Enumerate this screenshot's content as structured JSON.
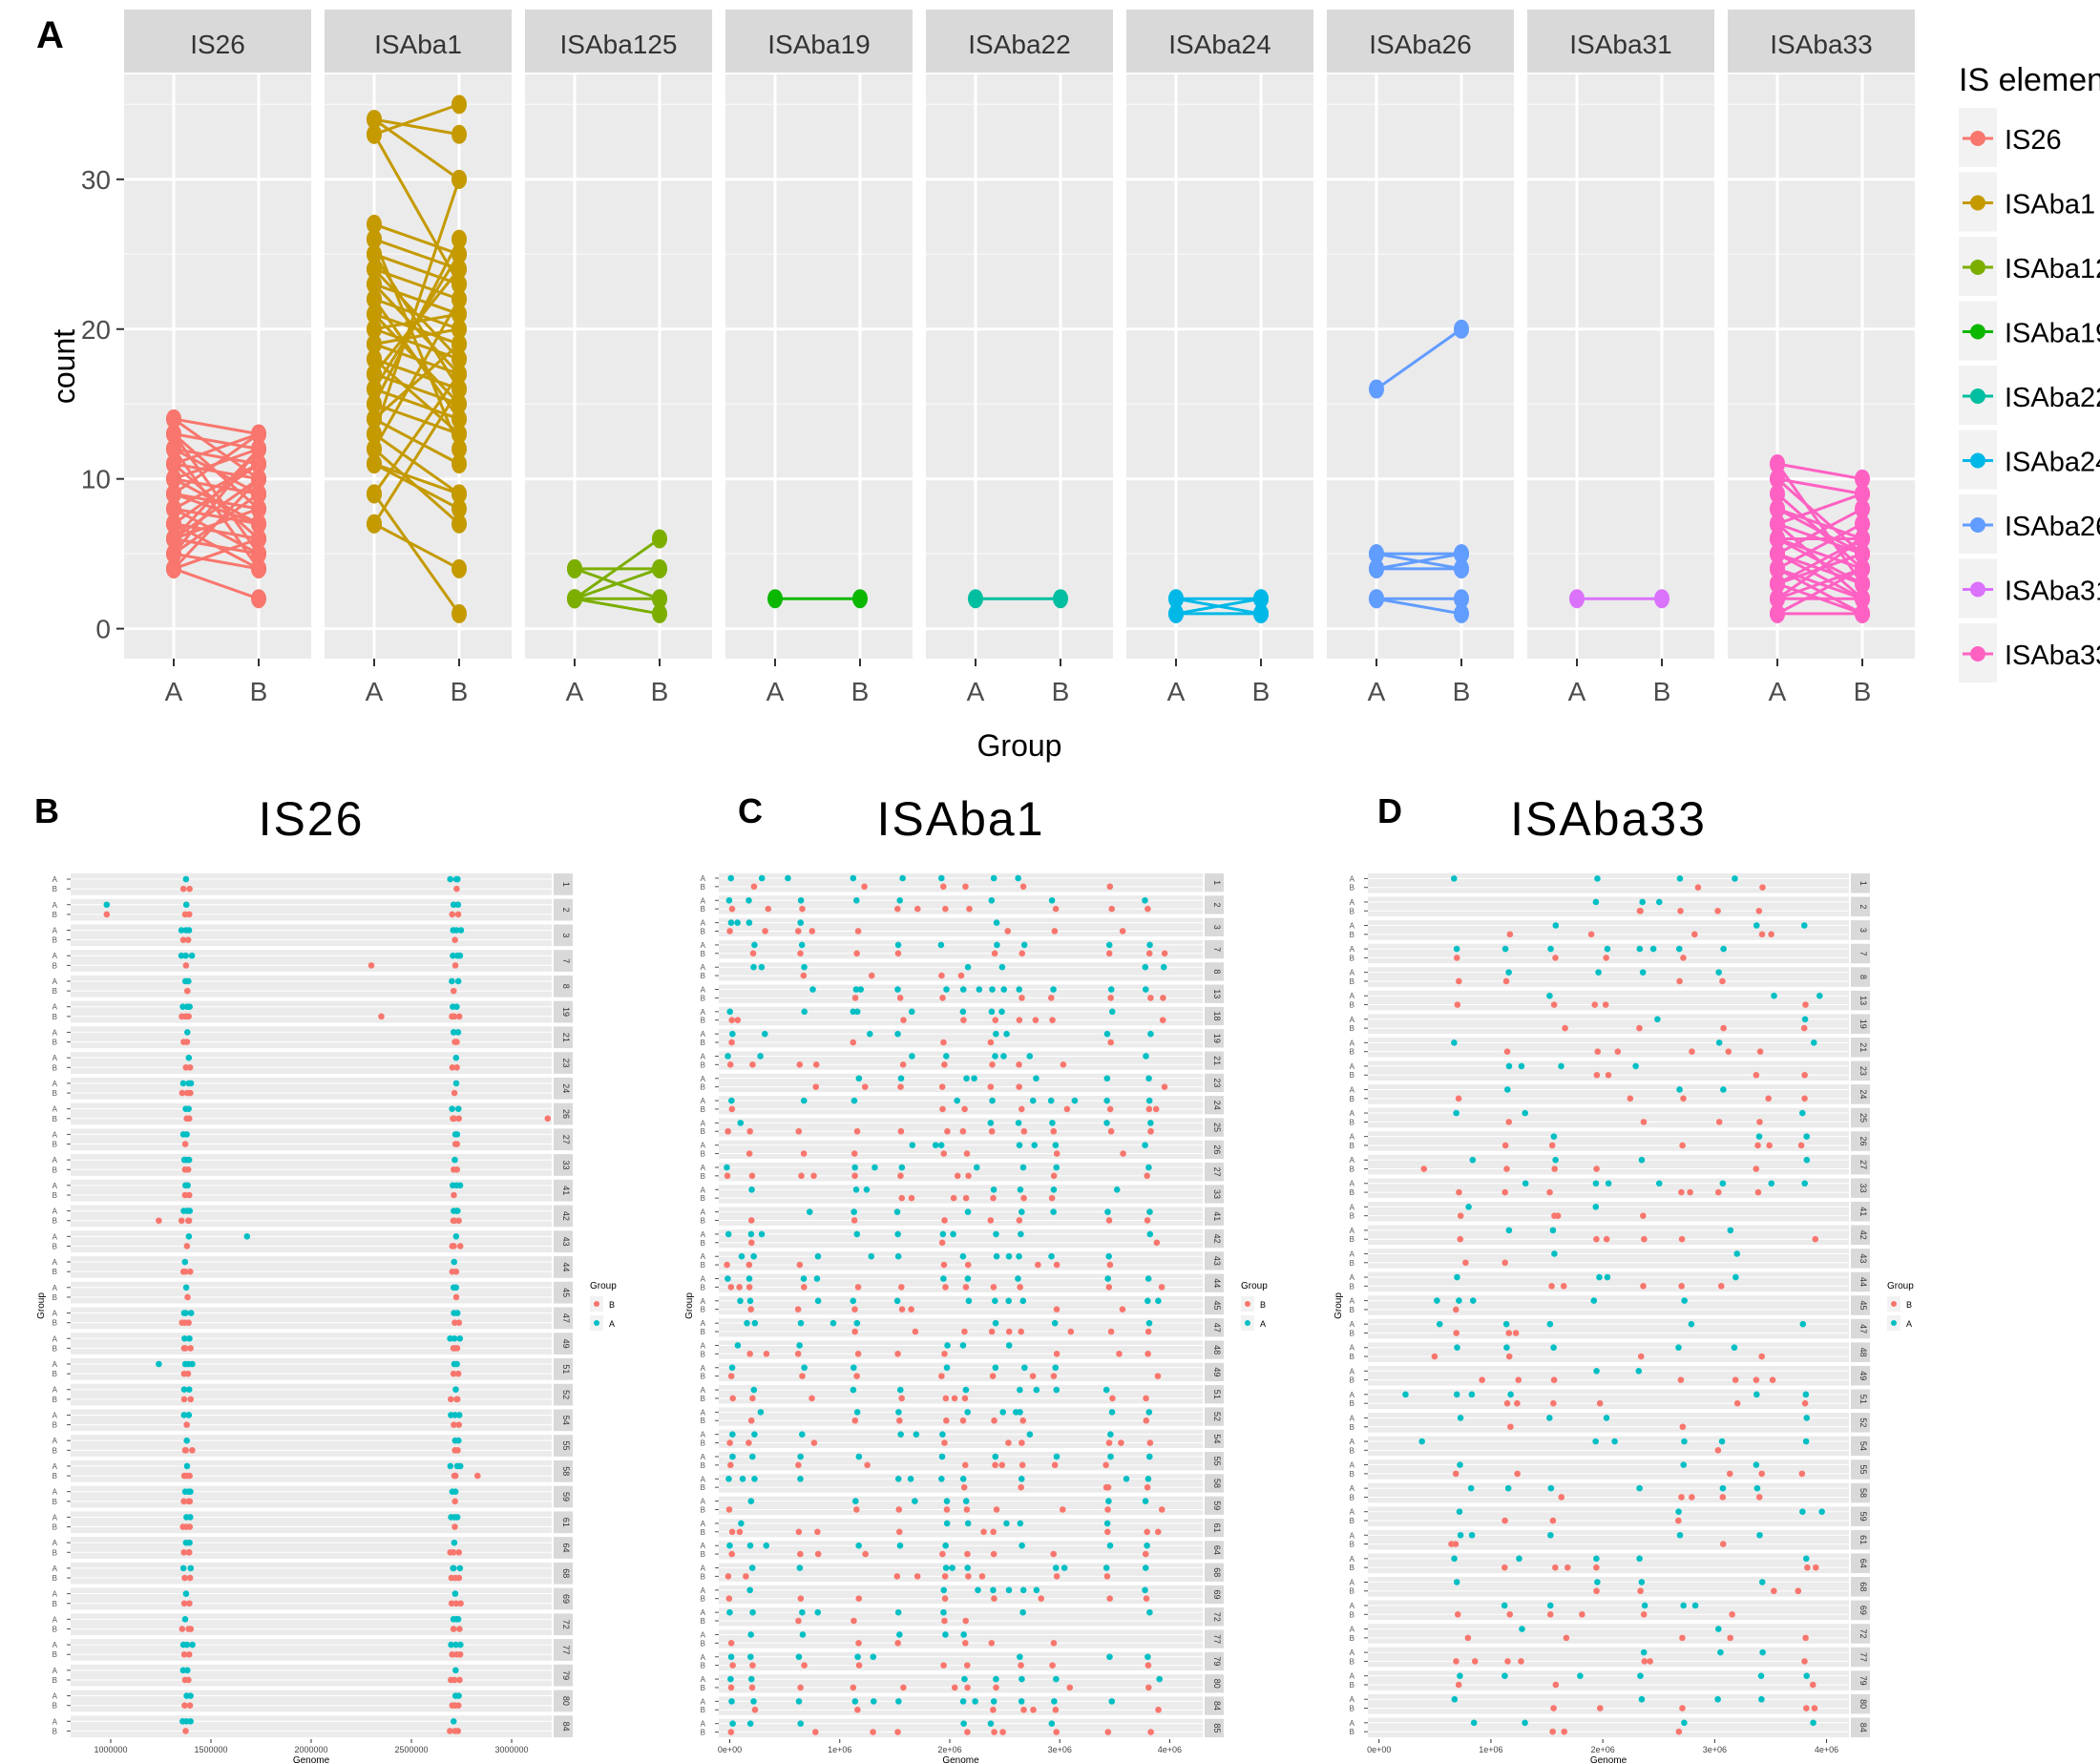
{
  "chart_data": [
    {
      "panel": "A",
      "type": "line",
      "subtype": "paired slope chart faceted by IS element",
      "xlabel": "Group",
      "ylabel": "count",
      "x_categories": [
        "A",
        "B"
      ],
      "y_ticks": [
        0,
        10,
        20,
        30
      ],
      "ylim": [
        0,
        35
      ],
      "legend_title": "IS element",
      "legend_position": "right",
      "facets": [
        {
          "name": "IS26",
          "color": "#F8766D",
          "pairs": [
            [
              4,
              2
            ],
            [
              5,
              4
            ],
            [
              6,
              5
            ],
            [
              7,
              6
            ],
            [
              8,
              7
            ],
            [
              9,
              8
            ],
            [
              10,
              9
            ],
            [
              11,
              10
            ],
            [
              12,
              11
            ],
            [
              13,
              12
            ],
            [
              14,
              13
            ],
            [
              4,
              6
            ],
            [
              6,
              8
            ],
            [
              8,
              11
            ],
            [
              10,
              7
            ],
            [
              12,
              9
            ],
            [
              14,
              10
            ],
            [
              5,
              12
            ],
            [
              7,
              4
            ],
            [
              9,
              13
            ],
            [
              11,
              6
            ],
            [
              13,
              8
            ],
            [
              6,
              10
            ],
            [
              8,
              5
            ],
            [
              10,
              12
            ],
            [
              12,
              4
            ],
            [
              5,
              9
            ],
            [
              7,
              11
            ],
            [
              9,
              7
            ],
            [
              11,
              13
            ],
            [
              4,
              10
            ],
            [
              6,
              12
            ],
            [
              13,
              5
            ]
          ]
        },
        {
          "name": "ISAba1",
          "color": "#C49A00",
          "pairs": [
            [
              7,
              4
            ],
            [
              9,
              1
            ],
            [
              11,
              8
            ],
            [
              12,
              7
            ],
            [
              13,
              9
            ],
            [
              14,
              11
            ],
            [
              15,
              13
            ],
            [
              16,
              14
            ],
            [
              17,
              15
            ],
            [
              18,
              16
            ],
            [
              19,
              17
            ],
            [
              20,
              18
            ],
            [
              21,
              19
            ],
            [
              22,
              20
            ],
            [
              23,
              21
            ],
            [
              24,
              22
            ],
            [
              25,
              23
            ],
            [
              26,
              24
            ],
            [
              27,
              25
            ],
            [
              33,
              35
            ],
            [
              34,
              33
            ],
            [
              13,
              30
            ],
            [
              15,
              26
            ],
            [
              17,
              24
            ],
            [
              19,
              20
            ],
            [
              21,
              15
            ],
            [
              23,
              17
            ],
            [
              25,
              16
            ],
            [
              12,
              22
            ],
            [
              14,
              19
            ],
            [
              16,
              25
            ],
            [
              18,
              13
            ],
            [
              20,
              21
            ],
            [
              22,
              14
            ],
            [
              24,
              18
            ],
            [
              26,
              12
            ],
            [
              33,
              23
            ],
            [
              34,
              30
            ],
            [
              9,
              17
            ],
            [
              11,
              9
            ],
            [
              7,
              16
            ]
          ]
        },
        {
          "name": "ISAba125",
          "color": "#7CAE00",
          "pairs": [
            [
              2,
              2
            ],
            [
              2,
              4
            ],
            [
              2,
              6
            ],
            [
              4,
              4
            ],
            [
              4,
              2
            ],
            [
              2,
              1
            ]
          ]
        },
        {
          "name": "ISAba19",
          "color": "#0CB702",
          "pairs": [
            [
              2,
              2
            ]
          ]
        },
        {
          "name": "ISAba22",
          "color": "#00BE9F",
          "pairs": [
            [
              2,
              2
            ]
          ]
        },
        {
          "name": "ISAba24",
          "color": "#00B8E7",
          "pairs": [
            [
              1,
              1
            ],
            [
              2,
              2
            ],
            [
              1,
              2
            ],
            [
              2,
              1
            ]
          ]
        },
        {
          "name": "ISAba26",
          "color": "#619CFF",
          "pairs": [
            [
              16,
              20
            ],
            [
              5,
              5
            ],
            [
              4,
              4
            ],
            [
              5,
              4
            ],
            [
              4,
              5
            ],
            [
              2,
              2
            ],
            [
              2,
              1
            ]
          ]
        },
        {
          "name": "ISAba31",
          "color": "#DB72FB",
          "pairs": [
            [
              2,
              2
            ]
          ]
        },
        {
          "name": "ISAba33",
          "color": "#FF61C3",
          "pairs": [
            [
              11,
              10
            ],
            [
              10,
              9
            ],
            [
              8,
              6
            ],
            [
              7,
              5
            ],
            [
              6,
              4
            ],
            [
              5,
              3
            ],
            [
              4,
              2
            ],
            [
              3,
              1
            ],
            [
              2,
              2
            ],
            [
              1,
              1
            ],
            [
              3,
              5
            ],
            [
              5,
              8
            ],
            [
              7,
              2
            ],
            [
              9,
              4
            ],
            [
              2,
              6
            ],
            [
              4,
              7
            ],
            [
              6,
              3
            ],
            [
              8,
              5
            ],
            [
              1,
              4
            ],
            [
              3,
              6
            ],
            [
              5,
              2
            ],
            [
              7,
              9
            ],
            [
              2,
              4
            ],
            [
              4,
              1
            ],
            [
              6,
              6
            ],
            [
              10,
              5
            ],
            [
              11,
              3
            ]
          ]
        }
      ]
    },
    {
      "panel": "B",
      "title": "IS26",
      "type": "scatter",
      "xlabel": "Genome",
      "ylabel": "Group",
      "xlim": [
        800000,
        3200000
      ],
      "x_ticks": [
        1000000,
        1500000,
        2000000,
        2500000,
        3000000
      ],
      "x_tick_labels": [
        "1000000",
        "1500000",
        "2000000",
        "2500000",
        "3000000"
      ],
      "strain_ids": [
        "1",
        "2",
        "3",
        "7",
        "8",
        "19",
        "21",
        "23",
        "24",
        "26",
        "27",
        "33",
        "41",
        "42",
        "43",
        "44",
        "45",
        "47",
        "49",
        "51",
        "52",
        "54",
        "55",
        "58",
        "59",
        "61",
        "64",
        "68",
        "69",
        "72",
        "77",
        "79",
        "80",
        "84"
      ],
      "legend_title": "Group",
      "legend": [
        {
          "label": "B",
          "color": "#F8766D"
        },
        {
          "label": "A",
          "color": "#00BFC4"
        }
      ],
      "cluster_positions": [
        1380000,
        2720000
      ],
      "outliers": [
        [
          1,
          "A",
          980000
        ],
        [
          1,
          "B",
          980000
        ],
        [
          3,
          "B",
          2300000
        ],
        [
          5,
          "B",
          2350000
        ],
        [
          9,
          "B",
          3180000
        ],
        [
          13,
          "B",
          1240000
        ],
        [
          14,
          "A",
          1680000
        ],
        [
          19,
          "A",
          1240000
        ],
        [
          23,
          "B",
          2830000
        ]
      ]
    },
    {
      "panel": "C",
      "title": "ISAba1",
      "type": "scatter",
      "xlabel": "Genome",
      "ylabel": "Group",
      "xlim": [
        -100000,
        4300000
      ],
      "x_ticks": [
        0,
        1000000,
        2000000,
        3000000,
        4000000
      ],
      "x_tick_labels": [
        "0e+00",
        "1e+06",
        "2e+06",
        "3e+06",
        "4e+06"
      ],
      "strain_ids": [
        "1",
        "2",
        "3",
        "7",
        "8",
        "13",
        "18",
        "19",
        "21",
        "23",
        "24",
        "25",
        "26",
        "27",
        "33",
        "41",
        "42",
        "43",
        "44",
        "45",
        "47",
        "48",
        "49",
        "51",
        "52",
        "54",
        "55",
        "58",
        "59",
        "61",
        "64",
        "68",
        "69",
        "72",
        "77",
        "79",
        "80",
        "84",
        "85"
      ],
      "legend_title": "Group",
      "legend": [
        {
          "label": "B",
          "color": "#F8766D"
        },
        {
          "label": "A",
          "color": "#00BFC4"
        }
      ],
      "hotspots": [
        0,
        200000,
        650000,
        1150000,
        1550000,
        1950000,
        2150000,
        2400000,
        2650000,
        2950000,
        3450000,
        3800000
      ]
    },
    {
      "panel": "D",
      "title": "ISAba33",
      "type": "scatter",
      "xlabel": "Genome",
      "ylabel": "Group",
      "xlim": [
        -100000,
        4200000
      ],
      "x_ticks": [
        0,
        1000000,
        2000000,
        3000000,
        4000000
      ],
      "x_tick_labels": [
        "0e+00",
        "1e+06",
        "2e+06",
        "3e+06",
        "4e+06"
      ],
      "strain_ids": [
        "1",
        "2",
        "3",
        "7",
        "8",
        "13",
        "19",
        "21",
        "23",
        "24",
        "25",
        "26",
        "27",
        "33",
        "41",
        "42",
        "43",
        "44",
        "45",
        "47",
        "48",
        "49",
        "51",
        "52",
        "54",
        "55",
        "58",
        "59",
        "61",
        "64",
        "68",
        "69",
        "72",
        "77",
        "79",
        "80",
        "84"
      ],
      "legend_title": "Group",
      "legend": [
        {
          "label": "B",
          "color": "#F8766D"
        },
        {
          "label": "A",
          "color": "#00BFC4"
        }
      ],
      "hotspots": [
        700000,
        1150000,
        1550000,
        1950000,
        2350000,
        2700000,
        3050000,
        3400000,
        3800000
      ]
    }
  ],
  "labels": {
    "panel_a": "A",
    "panel_b": "B",
    "panel_c": "C",
    "panel_d": "D"
  }
}
